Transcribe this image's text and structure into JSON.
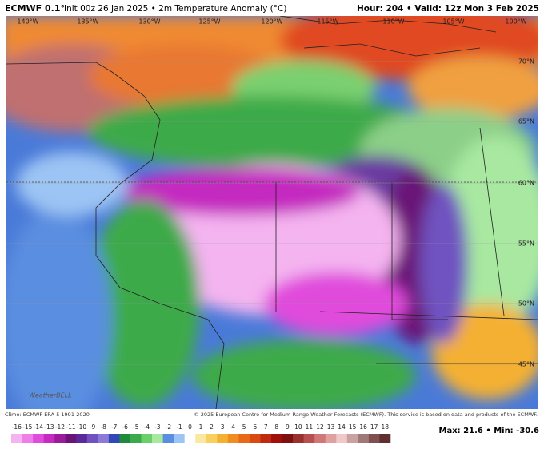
{
  "header": {
    "model": "ECMWF 0.1°",
    "description": "Init 00z 26 Jan 2025 • 2m Temperature Anomaly (°C)",
    "valid": "Hour: 204 • Valid: 12z Mon 3 Feb 2025"
  },
  "map": {
    "lon_labels": [
      "140°W",
      "135°W",
      "130°W",
      "125°W",
      "120°W",
      "115°W",
      "110°W",
      "105°W",
      "100°W"
    ],
    "lat_labels": [
      "70°N",
      "65°N",
      "60°N",
      "55°N",
      "50°N",
      "45°N"
    ],
    "watermark": "WeatherBELL"
  },
  "footer": {
    "climo": "Climo: ECMWF ERA-5 1991-2020",
    "credit": "© 2025 European Centre for Medium-Range Weather Forecasts (ECMWF). This service is based on data and products of the ECMWF.",
    "extremes": "Max: 21.6 • Min: -30.6"
  },
  "colorbar": {
    "ticks": [
      -16,
      -15,
      -14,
      -13,
      -12,
      -11,
      -10,
      -9,
      -8,
      -7,
      -6,
      -5,
      -4,
      -3,
      -2,
      -1,
      0,
      1,
      2,
      3,
      4,
      5,
      6,
      7,
      8,
      9,
      10,
      11,
      12,
      13,
      14,
      15,
      16,
      17,
      18
    ],
    "colors": [
      "#f4b4f0",
      "#ee7ee8",
      "#e04cdc",
      "#c52bc0",
      "#9a1c9a",
      "#6b1478",
      "#5a2a9a",
      "#6f52c0",
      "#8c7ad8",
      "#3048b8",
      "#1f8a3a",
      "#3caa4a",
      "#6cd06a",
      "#a8e8a0",
      "#5a8ee0",
      "#9cc4f4",
      "#ffffff",
      "#fbe8a0",
      "#f7d060",
      "#f4b030",
      "#f08c20",
      "#e86a18",
      "#d84a10",
      "#c02a10",
      "#a01008",
      "#801010",
      "#9a3030",
      "#b85050",
      "#d07878",
      "#e0a0a0",
      "#f0c8c8",
      "#caa0a0",
      "#a07878",
      "#805050",
      "#603030"
    ]
  }
}
